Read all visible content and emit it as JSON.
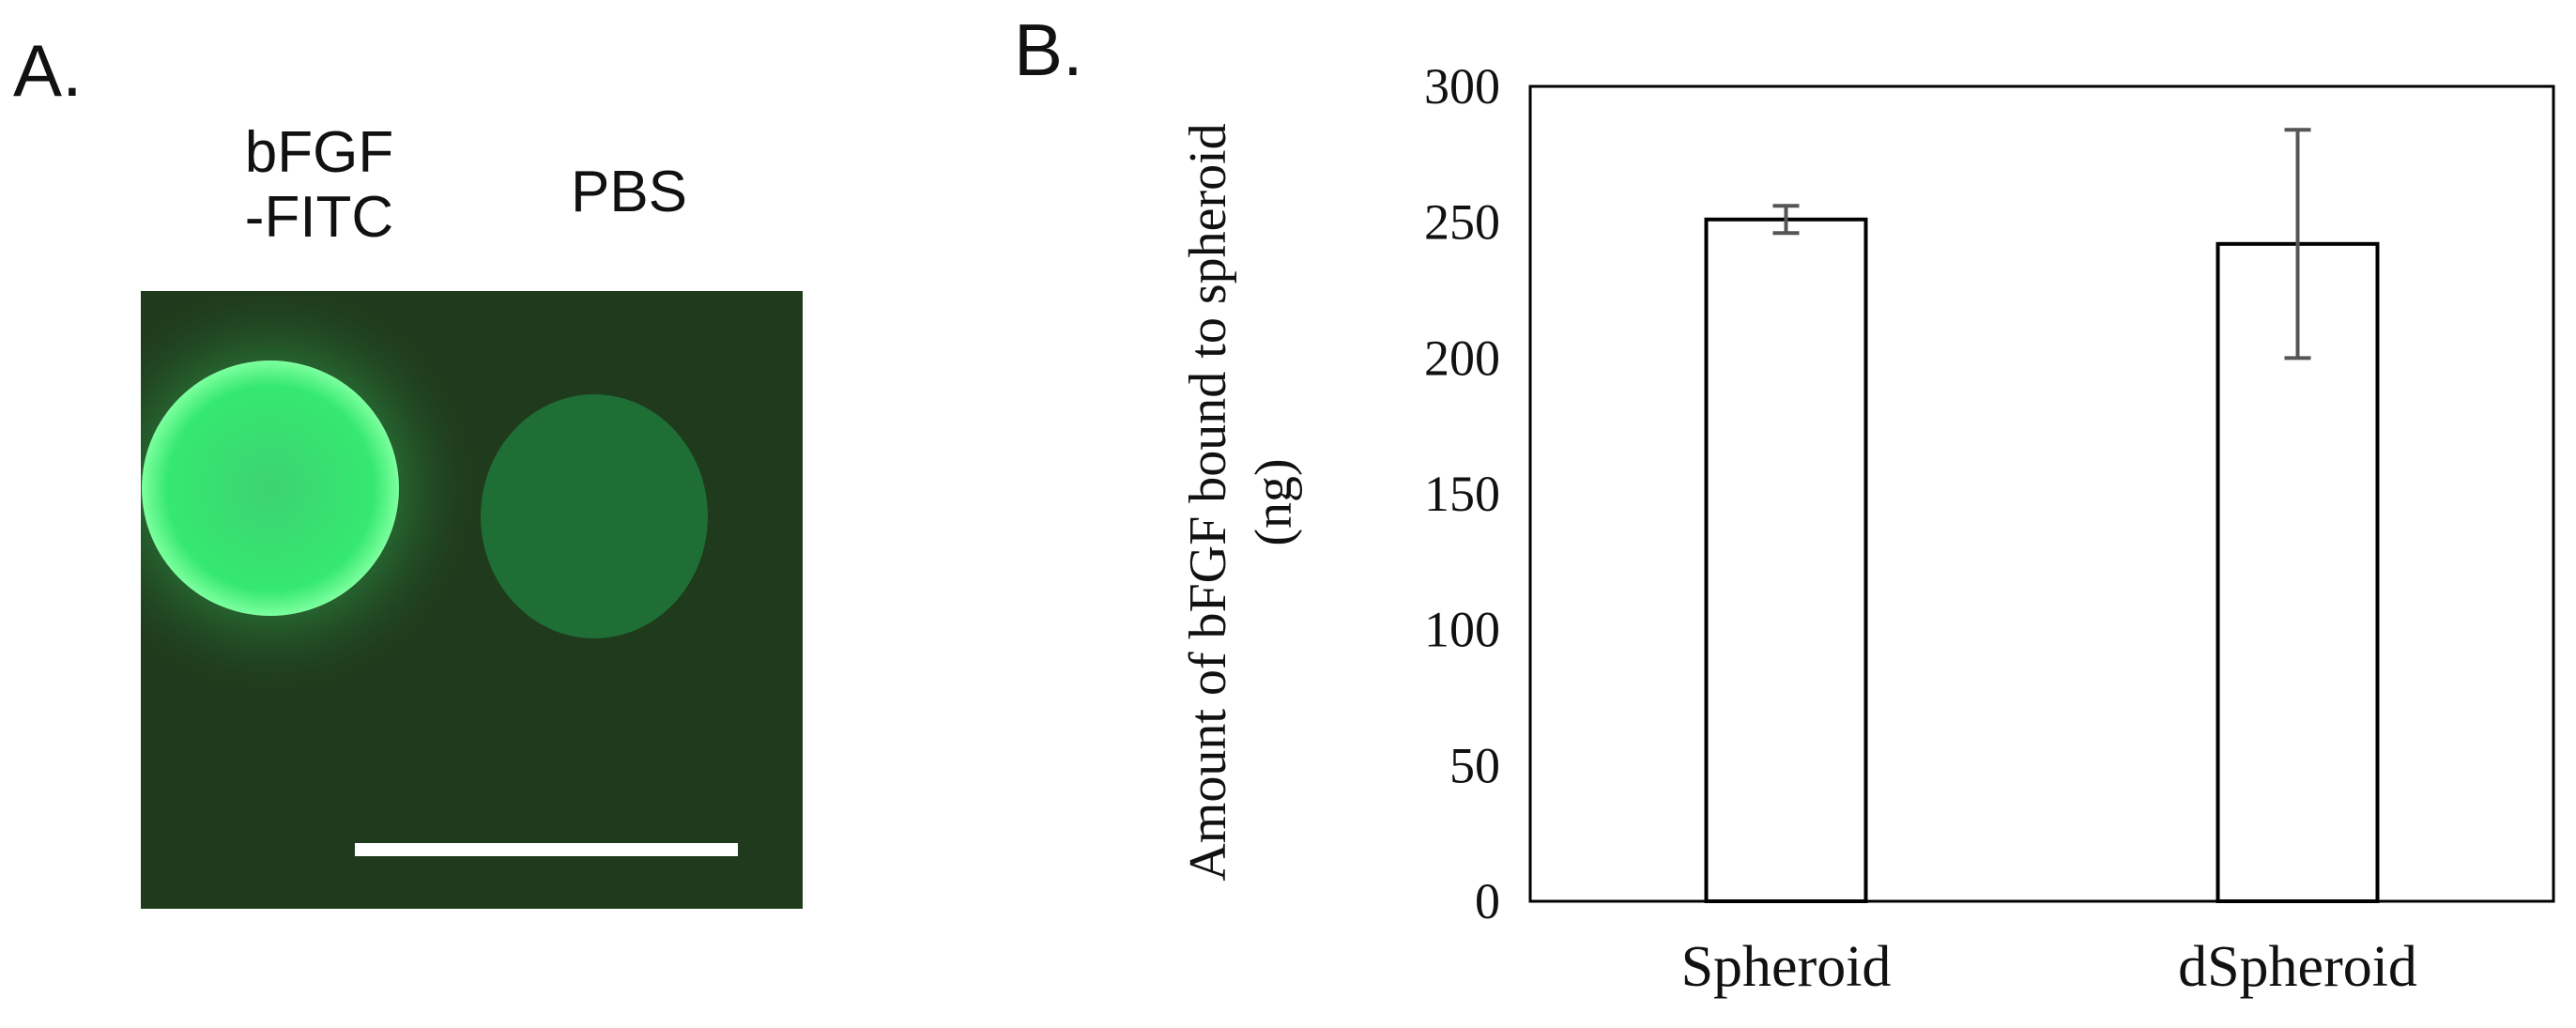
{
  "panels": {
    "a_label": "A.",
    "b_label": "B."
  },
  "micrograph": {
    "captions": [
      "bFGF\n-FITC",
      "PBS"
    ],
    "caption_left": "bFGF\n-FITC",
    "caption_right": "PBS",
    "colors": {
      "background": "#1f3a1c",
      "fitc_spheroid": "#2ee86a",
      "pbs_spheroid": "#1e6e35",
      "scale_bar": "#ffffff"
    }
  },
  "chart_data": {
    "type": "bar",
    "categories": [
      "Spheroid",
      "dSpheroid"
    ],
    "values": [
      251,
      242
    ],
    "error": [
      5,
      42
    ],
    "ylabel": "Amount of bFGF bound to spheroid\n(ng)",
    "ylabel_line1": "Amount of bFGF bound to spheroid",
    "ylabel_line2": "(ng)",
    "xlabel": "",
    "ylim": [
      0,
      300
    ],
    "yticks": [
      0,
      50,
      100,
      150,
      200,
      250,
      300
    ],
    "grid": false,
    "bar_fill": "#ffffff",
    "bar_stroke": "#000000",
    "errorbar_color": "#555555"
  }
}
